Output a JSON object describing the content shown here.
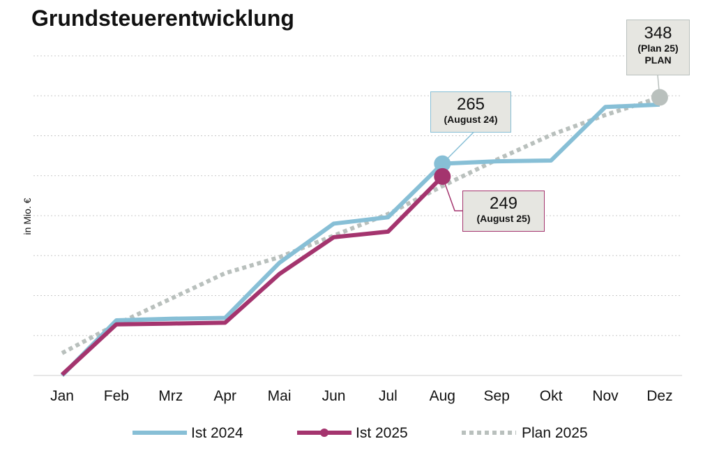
{
  "title": "Grundsteuerentwicklung",
  "chart_data": {
    "type": "line",
    "title": "Grundsteuerentwicklung",
    "ylabel": "in Mio. €",
    "xlabel": "",
    "categories": [
      "Jan",
      "Feb",
      "Mrz",
      "Apr",
      "Mai",
      "Jun",
      "Jul",
      "Aug",
      "Sep",
      "Okt",
      "Nov",
      "Dez"
    ],
    "ylim": [
      0,
      400
    ],
    "grid": true,
    "legend_position": "bottom",
    "series": [
      {
        "name": "Ist 2024",
        "color": "#87bfd6",
        "style": "solid",
        "values": [
          0,
          69,
          71,
          72,
          141,
          190,
          198,
          265,
          268,
          269,
          336,
          339
        ]
      },
      {
        "name": "Ist 2025",
        "color": "#a4346e",
        "style": "solid-marker",
        "values": [
          1,
          64,
          65,
          66,
          127,
          173,
          180,
          249,
          null,
          null,
          null,
          null
        ]
      },
      {
        "name": "Plan 2025",
        "color": "#b9c0bd",
        "style": "dotted",
        "values": [
          28,
          64,
          96,
          128,
          148,
          175,
          202,
          237,
          270,
          301,
          326,
          348
        ]
      }
    ],
    "callouts": [
      {
        "series": "Ist 2024",
        "category": "Aug",
        "value": "265",
        "label": "(August 24)"
      },
      {
        "series": "Ist 2025",
        "category": "Aug",
        "value": "249",
        "label": "(August 25)"
      },
      {
        "series": "Plan 2025",
        "category": "Dez",
        "value": "348",
        "label": "(Plan 25)",
        "label2": "PLAN"
      }
    ]
  }
}
